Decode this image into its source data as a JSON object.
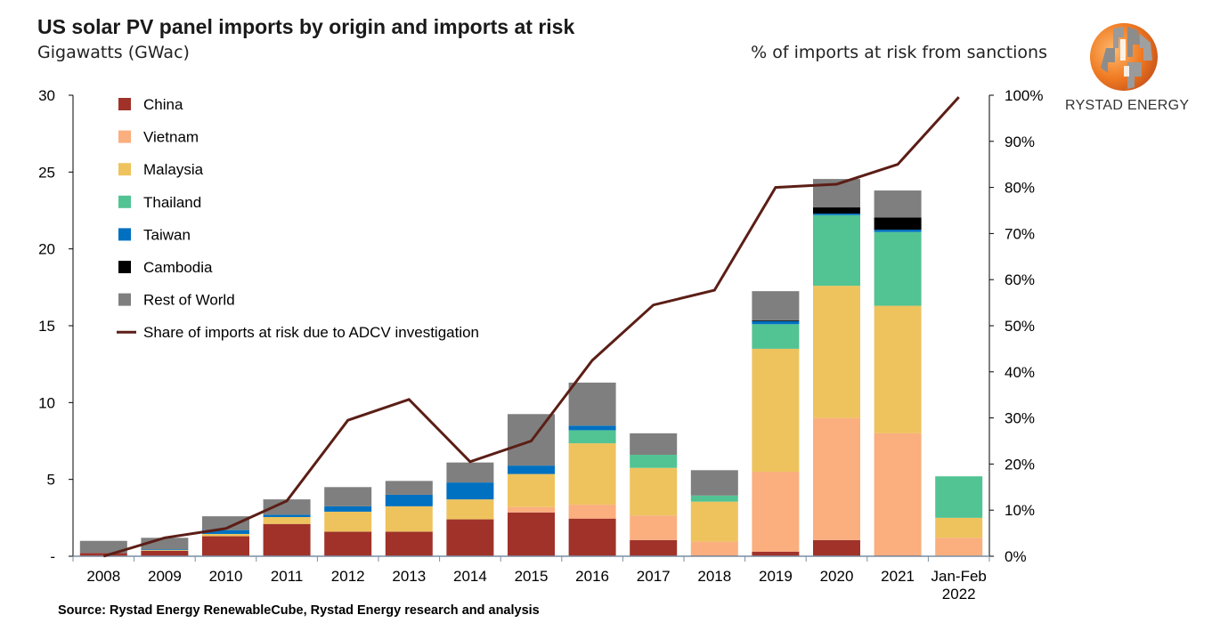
{
  "header": {
    "title": "US solar PV panel imports by origin and imports at risk",
    "subtitle": "Gigawatts (GWac)",
    "right_axis_title": "% of imports at risk from sanctions"
  },
  "footer": {
    "source": "Source: Rystad Energy RenewableCube, Rystad Energy research and analysis"
  },
  "logo": {
    "text": "RYSTAD ENERGY",
    "colors": [
      "#F07A22",
      "#8C8C8C"
    ]
  },
  "chart_data": {
    "type": "bar",
    "stacked": true,
    "title": "US solar PV panel imports by origin and imports at risk",
    "ylabel": "Gigawatts (GWac)",
    "y2label": "% of imports at risk from sanctions",
    "ylim": [
      0,
      30
    ],
    "y2lim": [
      0,
      100
    ],
    "yticks": [
      "-",
      "5",
      "10",
      "15",
      "20",
      "25",
      "30"
    ],
    "y2ticks": [
      "0%",
      "10%",
      "20%",
      "30%",
      "40%",
      "50%",
      "60%",
      "70%",
      "80%",
      "90%",
      "100%"
    ],
    "grid": false,
    "legend_position": "top-left",
    "categories": [
      "2008",
      "2009",
      "2010",
      "2011",
      "2012",
      "2013",
      "2014",
      "2015",
      "2016",
      "2017",
      "2018",
      "2019",
      "2020",
      "2021",
      "Jan-Feb\n2022"
    ],
    "series": [
      {
        "name": "China",
        "color": "#A0322A",
        "values": [
          0.2,
          0.35,
          1.3,
          2.1,
          1.6,
          1.6,
          2.4,
          2.85,
          2.45,
          1.05,
          0.05,
          0.3,
          1.05,
          0.05,
          0
        ]
      },
      {
        "name": "Vietnam",
        "color": "#FBAE7E",
        "values": [
          0,
          0,
          0,
          0,
          0,
          0,
          0,
          0.35,
          0.9,
          1.6,
          0.9,
          5.2,
          7.95,
          7.95,
          1.2
        ]
      },
      {
        "name": "Malaysia",
        "color": "#EEC35E",
        "values": [
          0,
          0.05,
          0.15,
          0.45,
          1.3,
          1.65,
          1.3,
          2.15,
          4.0,
          3.1,
          2.6,
          8.0,
          8.6,
          8.3,
          1.3
        ]
      },
      {
        "name": "Thailand",
        "color": "#52C393",
        "values": [
          0,
          0,
          0,
          0,
          0,
          0,
          0,
          0,
          0.85,
          0.85,
          0.4,
          1.6,
          4.6,
          4.8,
          2.7
        ]
      },
      {
        "name": "Taiwan",
        "color": "#0070C0",
        "values": [
          0,
          0.05,
          0.25,
          0.15,
          0.35,
          0.75,
          1.1,
          0.55,
          0.3,
          0,
          0,
          0.2,
          0.1,
          0.15,
          0
        ]
      },
      {
        "name": "Cambodia",
        "color": "#000000",
        "values": [
          0,
          0,
          0,
          0,
          0,
          0,
          0,
          0,
          0,
          0,
          0,
          0.05,
          0.4,
          0.8,
          0
        ]
      },
      {
        "name": "Rest of World",
        "color": "#7F7F7F",
        "values": [
          0.8,
          0.75,
          0.9,
          1.0,
          1.25,
          0.9,
          1.3,
          3.35,
          2.8,
          1.4,
          1.65,
          1.9,
          1.85,
          1.75,
          0
        ]
      }
    ],
    "line_series": {
      "name": "Share of imports at risk due to ADCV investigation",
      "color": "#5B1E16",
      "axis": "right",
      "values": [
        0,
        4,
        6,
        12,
        29.5,
        34,
        20.5,
        25,
        42.5,
        54.5,
        57.7,
        80,
        80.7,
        85,
        99.6
      ]
    }
  }
}
